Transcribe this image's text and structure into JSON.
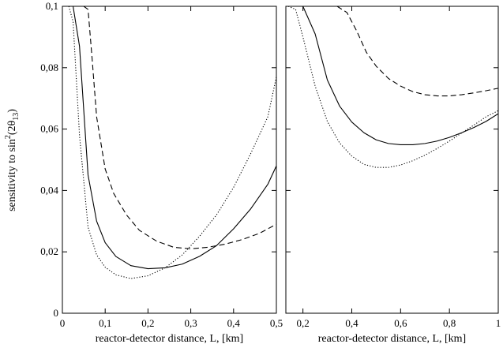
{
  "chart_data": [
    {
      "type": "line",
      "ylabel": "sensitivity to sin²(2θ₁₃)",
      "ylabel_parts": {
        "main": "sensitivity to sin",
        "sup": "2",
        "open": "(2θ",
        "sub": "13",
        "close": ")"
      },
      "xlabel": "reactor-detector distance, L, [km]",
      "xlim": [
        0,
        0.5
      ],
      "ylim": [
        0,
        0.1
      ],
      "x_ticks": [
        0,
        0.1,
        0.2,
        0.3,
        0.4,
        0.5
      ],
      "x_tick_labels": [
        "0",
        "0,1",
        "0,2",
        "0,3",
        "0,4",
        "0,5"
      ],
      "y_ticks": [
        0,
        0.02,
        0.04,
        0.06,
        0.08,
        0.1
      ],
      "y_tick_labels": [
        "0",
        "0,02",
        "0,04",
        "0,06",
        "0,08",
        "0,1"
      ],
      "grid": false,
      "series": [
        {
          "style": "solid",
          "x": [
            0.015,
            0.025,
            0.04,
            0.06,
            0.08,
            0.1,
            0.125,
            0.16,
            0.2,
            0.24,
            0.28,
            0.32,
            0.36,
            0.4,
            0.44,
            0.48,
            0.5
          ],
          "y": [
            0.1,
            0.1,
            0.087,
            0.045,
            0.03,
            0.023,
            0.0185,
            0.0155,
            0.0145,
            0.0148,
            0.016,
            0.0185,
            0.022,
            0.0275,
            0.034,
            0.042,
            0.048
          ]
        },
        {
          "style": "dashed",
          "x": [
            0.05,
            0.06,
            0.07,
            0.08,
            0.1,
            0.12,
            0.15,
            0.18,
            0.22,
            0.26,
            0.3,
            0.34,
            0.38,
            0.42,
            0.46,
            0.5
          ],
          "y": [
            0.1,
            0.099,
            0.082,
            0.064,
            0.047,
            0.039,
            0.032,
            0.027,
            0.0235,
            0.0215,
            0.021,
            0.0215,
            0.0225,
            0.024,
            0.026,
            0.029
          ]
        },
        {
          "style": "dotted",
          "x": [
            0.015,
            0.025,
            0.04,
            0.06,
            0.08,
            0.1,
            0.125,
            0.16,
            0.2,
            0.24,
            0.28,
            0.32,
            0.36,
            0.4,
            0.44,
            0.48,
            0.5
          ],
          "y": [
            0.1,
            0.095,
            0.058,
            0.028,
            0.019,
            0.015,
            0.0125,
            0.0113,
            0.0122,
            0.0148,
            0.019,
            0.025,
            0.032,
            0.041,
            0.052,
            0.064,
            0.077
          ]
        }
      ]
    },
    {
      "type": "line",
      "xlabel": "reactor-detector distance, L, [km]",
      "xlim": [
        0.13,
        1.0
      ],
      "ylim": [
        0,
        0.1
      ],
      "x_ticks": [
        0.2,
        0.4,
        0.6,
        0.8,
        1.0
      ],
      "x_tick_labels": [
        "0,2",
        "0,4",
        "0,6",
        "0,8",
        "1"
      ],
      "y_ticks": [
        0,
        0.02,
        0.04,
        0.06,
        0.08,
        0.1
      ],
      "grid": false,
      "series": [
        {
          "style": "solid",
          "x": [
            0.2,
            0.25,
            0.3,
            0.35,
            0.4,
            0.45,
            0.5,
            0.55,
            0.6,
            0.65,
            0.7,
            0.75,
            0.8,
            0.85,
            0.9,
            0.95,
            1.0
          ],
          "y": [
            0.1,
            0.091,
            0.076,
            0.0675,
            0.0623,
            0.0588,
            0.0565,
            0.0553,
            0.0549,
            0.0549,
            0.0553,
            0.0561,
            0.0573,
            0.0588,
            0.0605,
            0.0625,
            0.065
          ]
        },
        {
          "style": "dashed",
          "x": [
            0.34,
            0.38,
            0.42,
            0.46,
            0.5,
            0.55,
            0.6,
            0.65,
            0.7,
            0.75,
            0.8,
            0.85,
            0.9,
            0.95,
            1.0
          ],
          "y": [
            0.1,
            0.098,
            0.092,
            0.085,
            0.0805,
            0.0765,
            0.074,
            0.0722,
            0.0712,
            0.0708,
            0.0708,
            0.0712,
            0.0718,
            0.0725,
            0.0733
          ]
        },
        {
          "style": "dotted",
          "x": [
            0.14,
            0.17,
            0.2,
            0.25,
            0.3,
            0.35,
            0.4,
            0.45,
            0.5,
            0.55,
            0.6,
            0.65,
            0.7,
            0.75,
            0.8,
            0.85,
            0.9,
            0.95,
            1.0
          ],
          "y": [
            0.1,
            0.099,
            0.09,
            0.074,
            0.0625,
            0.0555,
            0.0512,
            0.0485,
            0.0475,
            0.0475,
            0.0483,
            0.0497,
            0.0515,
            0.0537,
            0.0561,
            0.0587,
            0.0613,
            0.064,
            0.066
          ]
        }
      ]
    }
  ]
}
